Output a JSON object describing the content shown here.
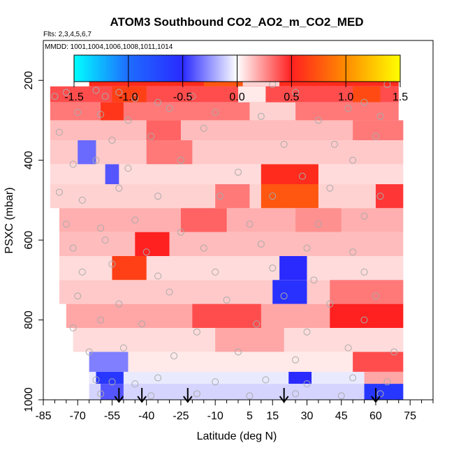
{
  "chart_data": {
    "type": "heatmap",
    "title": "ATOM3 Southbound CO2_AO2_m_CO2_MED",
    "flights_note": "Flts: 2,3,4,5,6,7",
    "dates_note": "MMDD: 1001,1004,1006,1008,1011,1014",
    "xlabel": "Latitude (deg N)",
    "ylabel": "PSXC (mbar)",
    "xlim": [
      -85,
      85
    ],
    "ylim": [
      1000,
      100
    ],
    "x_ticks": [
      -85,
      -70,
      -55,
      -40,
      -25,
      -10,
      5,
      15,
      30,
      45,
      60,
      75
    ],
    "x_tick_labels": [
      "-85",
      "-70",
      "-55",
      "-40",
      "-25",
      "-10",
      "5",
      "15",
      "30",
      "45",
      "60",
      "75"
    ],
    "y_ticks": [
      200,
      400,
      600,
      800,
      1000
    ],
    "y_tick_labels": [
      "200",
      "400",
      "600",
      "800",
      "1000"
    ],
    "colorbar": {
      "range": [
        -1.5,
        1.5
      ],
      "ticks": [
        -1.5,
        -1.0,
        -0.5,
        0.0,
        0.5,
        1.0,
        1.5
      ],
      "tick_labels": [
        "-1.5",
        "-1.0",
        "-0.5",
        "0.0",
        "0.5",
        "1.0",
        "1.5"
      ],
      "stops": [
        {
          "v": -1.5,
          "color": "#00ffff"
        },
        {
          "v": -1.0,
          "color": "#1e6cff"
        },
        {
          "v": -0.5,
          "color": "#2a2aff"
        },
        {
          "v": 0.0,
          "color": "#ffffff"
        },
        {
          "v": 0.5,
          "color": "#ff2020"
        },
        {
          "v": 1.0,
          "color": "#ff8c00"
        },
        {
          "v": 1.5,
          "color": "#ffff00"
        }
      ]
    },
    "arrow_latitudes": [
      -52,
      -42,
      -22,
      20,
      60
    ],
    "cells": [
      {
        "x0": -65,
        "x1": 70,
        "p0": 175,
        "p1": 215,
        "v": 0.55
      },
      {
        "x0": -15,
        "x1": 2,
        "p0": 175,
        "p1": 215,
        "v": 0.75
      },
      {
        "x0": 2,
        "x1": 18,
        "p0": 175,
        "p1": 215,
        "v": 0.1
      },
      {
        "x0": -82,
        "x1": 70,
        "p0": 215,
        "p1": 255,
        "v": 0.4
      },
      {
        "x0": -55,
        "x1": -40,
        "p0": 215,
        "p1": 255,
        "v": 0.65
      },
      {
        "x0": 0,
        "x1": 12,
        "p0": 215,
        "p1": 255,
        "v": 0.05
      },
      {
        "x0": 50,
        "x1": 62,
        "p0": 215,
        "p1": 255,
        "v": 0.7
      },
      {
        "x0": -82,
        "x1": 70,
        "p0": 255,
        "p1": 300,
        "v": 0.3
      },
      {
        "x0": -60,
        "x1": -50,
        "p0": 255,
        "p1": 300,
        "v": 0.6
      },
      {
        "x0": 5,
        "x1": 25,
        "p0": 255,
        "p1": 300,
        "v": 0.1
      },
      {
        "x0": -82,
        "x1": 72,
        "p0": 300,
        "p1": 350,
        "v": 0.15
      },
      {
        "x0": -40,
        "x1": -25,
        "p0": 300,
        "p1": 350,
        "v": 0.35
      },
      {
        "x0": 50,
        "x1": 72,
        "p0": 300,
        "p1": 350,
        "v": 0.3
      },
      {
        "x0": -82,
        "x1": 72,
        "p0": 350,
        "p1": 410,
        "v": 0.12
      },
      {
        "x0": -70,
        "x1": -62,
        "p0": 350,
        "p1": 410,
        "v": -0.35
      },
      {
        "x0": -40,
        "x1": -20,
        "p0": 350,
        "p1": 410,
        "v": 0.3
      },
      {
        "x0": -82,
        "x1": 72,
        "p0": 410,
        "p1": 460,
        "v": 0.08
      },
      {
        "x0": -58,
        "x1": -52,
        "p0": 410,
        "p1": 460,
        "v": -0.4
      },
      {
        "x0": 10,
        "x1": 35,
        "p0": 410,
        "p1": 460,
        "v": 0.55
      },
      {
        "x0": -82,
        "x1": 72,
        "p0": 460,
        "p1": 520,
        "v": 0.1
      },
      {
        "x0": 10,
        "x1": 35,
        "p0": 460,
        "p1": 520,
        "v": 0.75
      },
      {
        "x0": -10,
        "x1": 5,
        "p0": 460,
        "p1": 520,
        "v": 0.3
      },
      {
        "x0": 60,
        "x1": 72,
        "p0": 460,
        "p1": 520,
        "v": 0.45
      },
      {
        "x0": -78,
        "x1": 72,
        "p0": 520,
        "p1": 580,
        "v": 0.18
      },
      {
        "x0": -25,
        "x1": -5,
        "p0": 520,
        "p1": 580,
        "v": 0.35
      },
      {
        "x0": 25,
        "x1": 45,
        "p0": 520,
        "p1": 580,
        "v": 0.25
      },
      {
        "x0": -78,
        "x1": 72,
        "p0": 580,
        "p1": 640,
        "v": 0.15
      },
      {
        "x0": -45,
        "x1": -30,
        "p0": 580,
        "p1": 640,
        "v": 0.5
      },
      {
        "x0": -78,
        "x1": 72,
        "p0": 640,
        "p1": 700,
        "v": 0.08
      },
      {
        "x0": -55,
        "x1": -40,
        "p0": 640,
        "p1": 700,
        "v": 0.65
      },
      {
        "x0": 18,
        "x1": 30,
        "p0": 640,
        "p1": 700,
        "v": -0.5
      },
      {
        "x0": -78,
        "x1": 72,
        "p0": 700,
        "p1": 760,
        "v": 0.12
      },
      {
        "x0": 15,
        "x1": 30,
        "p0": 700,
        "p1": 760,
        "v": -0.55
      },
      {
        "x0": 40,
        "x1": 72,
        "p0": 700,
        "p1": 760,
        "v": 0.3
      },
      {
        "x0": -75,
        "x1": 72,
        "p0": 760,
        "p1": 820,
        "v": 0.2
      },
      {
        "x0": -20,
        "x1": 10,
        "p0": 760,
        "p1": 820,
        "v": 0.4
      },
      {
        "x0": 40,
        "x1": 72,
        "p0": 760,
        "p1": 820,
        "v": 0.5
      },
      {
        "x0": -72,
        "x1": 72,
        "p0": 820,
        "p1": 880,
        "v": 0.08
      },
      {
        "x0": -10,
        "x1": 20,
        "p0": 820,
        "p1": 880,
        "v": 0.2
      },
      {
        "x0": -65,
        "x1": 72,
        "p0": 880,
        "p1": 930,
        "v": 0.05
      },
      {
        "x0": -65,
        "x1": -48,
        "p0": 880,
        "p1": 930,
        "v": -0.3
      },
      {
        "x0": 50,
        "x1": 72,
        "p0": 880,
        "p1": 930,
        "v": 0.4
      },
      {
        "x0": -65,
        "x1": 72,
        "p0": 930,
        "p1": 960,
        "v": -0.05
      },
      {
        "x0": -62,
        "x1": -50,
        "p0": 930,
        "p1": 960,
        "v": -0.6
      },
      {
        "x0": 22,
        "x1": 32,
        "p0": 930,
        "p1": 960,
        "v": -0.5
      },
      {
        "x0": 55,
        "x1": 72,
        "p0": 930,
        "p1": 960,
        "v": 0.2
      },
      {
        "x0": -65,
        "x1": 72,
        "p0": 960,
        "p1": 1000,
        "v": -0.1
      },
      {
        "x0": 55,
        "x1": 72,
        "p0": 960,
        "p1": 1000,
        "v": -0.6
      },
      {
        "x0": -60,
        "x1": -50,
        "p0": 960,
        "p1": 1000,
        "v": -0.4
      }
    ],
    "observations": [
      [
        -80,
        240
      ],
      [
        -75,
        230
      ],
      [
        -62,
        225
      ],
      [
        -58,
        240
      ],
      [
        -52,
        230
      ],
      [
        -45,
        245
      ],
      [
        -35,
        255
      ],
      [
        -20,
        240
      ],
      [
        15,
        210
      ],
      [
        25,
        230
      ],
      [
        55,
        255
      ],
      [
        65,
        210
      ],
      [
        -70,
        280
      ],
      [
        -60,
        285
      ],
      [
        -48,
        300
      ],
      [
        -30,
        270
      ],
      [
        -10,
        280
      ],
      [
        10,
        290
      ],
      [
        35,
        300
      ],
      [
        48,
        270
      ],
      [
        62,
        290
      ],
      [
        -78,
        330
      ],
      [
        -55,
        350
      ],
      [
        -38,
        340
      ],
      [
        -15,
        320
      ],
      [
        20,
        360
      ],
      [
        42,
        360
      ],
      [
        60,
        340
      ],
      [
        -72,
        410
      ],
      [
        -62,
        400
      ],
      [
        -48,
        420
      ],
      [
        -25,
        400
      ],
      [
        0,
        430
      ],
      [
        28,
        440
      ],
      [
        50,
        400
      ],
      [
        -78,
        480
      ],
      [
        -68,
        500
      ],
      [
        -52,
        470
      ],
      [
        -35,
        490
      ],
      [
        -8,
        490
      ],
      [
        15,
        490
      ],
      [
        40,
        470
      ],
      [
        62,
        490
      ],
      [
        -75,
        560
      ],
      [
        -60,
        570
      ],
      [
        -45,
        550
      ],
      [
        -25,
        580
      ],
      [
        5,
        560
      ],
      [
        35,
        560
      ],
      [
        55,
        540
      ],
      [
        -72,
        620
      ],
      [
        -58,
        600
      ],
      [
        -40,
        630
      ],
      [
        -15,
        620
      ],
      [
        10,
        610
      ],
      [
        30,
        620
      ],
      [
        50,
        630
      ],
      [
        -68,
        680
      ],
      [
        -55,
        660
      ],
      [
        -35,
        690
      ],
      [
        -10,
        680
      ],
      [
        15,
        670
      ],
      [
        33,
        700
      ],
      [
        55,
        680
      ],
      [
        -70,
        740
      ],
      [
        -52,
        760
      ],
      [
        -30,
        730
      ],
      [
        -5,
        750
      ],
      [
        20,
        740
      ],
      [
        40,
        760
      ],
      [
        60,
        740
      ],
      [
        -72,
        820
      ],
      [
        -60,
        800
      ],
      [
        -42,
        810
      ],
      [
        -18,
        830
      ],
      [
        8,
        810
      ],
      [
        30,
        830
      ],
      [
        55,
        800
      ],
      [
        -65,
        880
      ],
      [
        -50,
        870
      ],
      [
        -28,
        890
      ],
      [
        0,
        880
      ],
      [
        25,
        900
      ],
      [
        48,
        870
      ],
      [
        68,
        880
      ],
      [
        -62,
        950
      ],
      [
        -55,
        955
      ],
      [
        -45,
        960
      ],
      [
        -35,
        945
      ],
      [
        -10,
        955
      ],
      [
        12,
        950
      ],
      [
        30,
        960
      ],
      [
        50,
        945
      ],
      [
        65,
        955
      ],
      [
        -60,
        985
      ],
      [
        -38,
        990
      ],
      [
        -18,
        985
      ],
      [
        5,
        990
      ],
      [
        25,
        985
      ],
      [
        45,
        990
      ],
      [
        62,
        985
      ]
    ]
  }
}
